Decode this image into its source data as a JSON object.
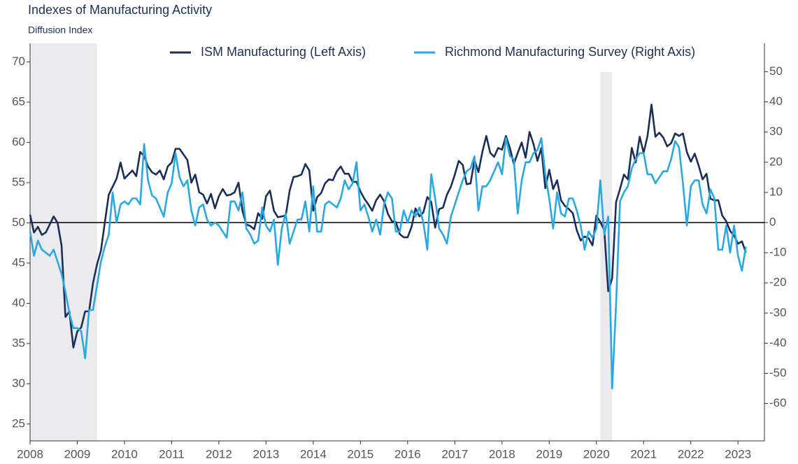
{
  "chart_data": {
    "type": "line",
    "title": "Indexes of Manufacturing Activity",
    "subtitle": "Diffusion Index",
    "x": [
      2008,
      2008.083,
      2008.167,
      2008.25,
      2008.333,
      2008.417,
      2008.5,
      2008.583,
      2008.667,
      2008.75,
      2008.833,
      2008.917,
      2009,
      2009.083,
      2009.167,
      2009.25,
      2009.333,
      2009.417,
      2009.5,
      2009.583,
      2009.667,
      2009.75,
      2009.833,
      2009.917,
      2010,
      2010.083,
      2010.167,
      2010.25,
      2010.333,
      2010.417,
      2010.5,
      2010.583,
      2010.667,
      2010.75,
      2010.833,
      2010.917,
      2011,
      2011.083,
      2011.167,
      2011.25,
      2011.333,
      2011.417,
      2011.5,
      2011.583,
      2011.667,
      2011.75,
      2011.833,
      2011.917,
      2012,
      2012.083,
      2012.167,
      2012.25,
      2012.333,
      2012.417,
      2012.5,
      2012.583,
      2012.667,
      2012.75,
      2012.833,
      2012.917,
      2013,
      2013.083,
      2013.167,
      2013.25,
      2013.333,
      2013.417,
      2013.5,
      2013.583,
      2013.667,
      2013.75,
      2013.833,
      2013.917,
      2014,
      2014.083,
      2014.167,
      2014.25,
      2014.333,
      2014.417,
      2014.5,
      2014.583,
      2014.667,
      2014.75,
      2014.833,
      2014.917,
      2015,
      2015.083,
      2015.167,
      2015.25,
      2015.333,
      2015.417,
      2015.5,
      2015.583,
      2015.667,
      2015.75,
      2015.833,
      2015.917,
      2016,
      2016.083,
      2016.167,
      2016.25,
      2016.333,
      2016.417,
      2016.5,
      2016.583,
      2016.667,
      2016.75,
      2016.833,
      2016.917,
      2017,
      2017.083,
      2017.167,
      2017.25,
      2017.333,
      2017.417,
      2017.5,
      2017.583,
      2017.667,
      2017.75,
      2017.833,
      2017.917,
      2018,
      2018.083,
      2018.167,
      2018.25,
      2018.333,
      2018.417,
      2018.5,
      2018.583,
      2018.667,
      2018.75,
      2018.833,
      2018.917,
      2019,
      2019.083,
      2019.167,
      2019.25,
      2019.333,
      2019.417,
      2019.5,
      2019.583,
      2019.667,
      2019.75,
      2019.833,
      2019.917,
      2020,
      2020.083,
      2020.167,
      2020.25,
      2020.333,
      2020.417,
      2020.5,
      2020.583,
      2020.667,
      2020.75,
      2020.833,
      2020.917,
      2021,
      2021.083,
      2021.167,
      2021.25,
      2021.333,
      2021.417,
      2021.5,
      2021.583,
      2021.667,
      2021.75,
      2021.833,
      2021.917,
      2022,
      2022.083,
      2022.167,
      2022.25,
      2022.333,
      2022.417,
      2022.5,
      2022.583,
      2022.667,
      2022.75,
      2022.833,
      2022.917,
      2023,
      2023.083,
      2023.167
    ],
    "series": [
      {
        "name": "ISM Manufacturing (Left Axis)",
        "color": "#1c2e57",
        "axis": "y",
        "values": [
          51,
          48.8,
          49.5,
          48.5,
          48.8,
          49.8,
          50.8,
          50,
          47.2,
          38.3,
          39,
          34.5,
          36.5,
          37,
          39,
          39,
          42.5,
          44.8,
          46.5,
          50,
          53.5,
          54.5,
          55.5,
          57.5,
          55.5,
          56,
          56.5,
          55.8,
          58.8,
          58.3,
          57,
          56.3,
          56,
          56.5,
          55.4,
          57,
          57.5,
          59.2,
          59.2,
          58.5,
          57.8,
          55,
          56,
          53.8,
          53.5,
          52.4,
          53.6,
          51.8,
          53.3,
          54.2,
          53.4,
          53.5,
          53.8,
          55,
          51.5,
          49.8,
          49.6,
          49.2,
          51.2,
          50.5,
          53.3,
          54,
          51.5,
          50.7,
          50.8,
          50.9,
          54,
          55.7,
          55.8,
          56,
          57.3,
          56.5,
          51.5,
          53.2,
          53.7,
          54.9,
          55.4,
          55.3,
          56.4,
          57,
          56.1,
          56.1,
          55.1,
          55.1,
          53.9,
          53,
          52.3,
          51.5,
          52.8,
          53.5,
          52.7,
          51.1,
          50.2,
          50.1,
          48.6,
          48.2,
          48.2,
          49.5,
          51.8,
          50.8,
          51.3,
          53.2,
          52.6,
          49.4,
          51.7,
          51.9,
          53.5,
          54.5,
          56,
          57.7,
          57.2,
          54.8,
          54.9,
          57.8,
          56.3,
          58.8,
          60.8,
          58.7,
          58.2,
          59.3,
          59.1,
          60.8,
          59.3,
          57.3,
          58.7,
          60,
          58.1,
          61.3,
          59.8,
          57.7,
          59.3,
          54.3,
          56.6,
          54.2,
          55.3,
          52.8,
          52.1,
          51.7,
          51.2,
          49.1,
          47.8,
          48.3,
          48.1,
          47.2,
          50.9,
          50.1,
          49.1,
          41.5,
          43.1,
          52.6,
          54.2,
          56,
          55.4,
          59.3,
          57.5,
          60.7,
          58.7,
          60.8,
          64.7,
          60.7,
          61.2,
          60.6,
          59.5,
          59.9,
          61.1,
          60.8,
          61.1,
          58.8,
          57.6,
          58.6,
          57.1,
          55.4,
          56.1,
          53,
          52.8,
          52.8,
          50.9,
          50.2,
          49,
          48.4,
          47.4,
          47.7,
          46.3
        ]
      },
      {
        "name": "Richmond Manufacturing Survey (Right Axis)",
        "color": "#29a9e0",
        "axis": "y2",
        "values": [
          -3,
          -11,
          -6,
          -9,
          -10,
          -11,
          -9,
          -13,
          -17,
          -23,
          -30,
          -35,
          -35,
          -36,
          -45,
          -29,
          -29,
          -21,
          -13,
          -8,
          -4,
          10,
          0,
          6,
          7,
          6,
          8,
          8,
          6,
          26,
          14,
          9,
          8,
          5,
          2,
          10,
          13,
          23,
          15,
          12,
          14,
          4,
          -1,
          5,
          6,
          1,
          -1,
          0,
          -1,
          -3,
          -5,
          7,
          7,
          4,
          10,
          -2,
          -4,
          -7,
          -6,
          5,
          -1,
          -3,
          1,
          -14,
          -2,
          3,
          -7,
          -3,
          1,
          1,
          7,
          -3,
          12,
          -3,
          -3,
          6,
          7,
          6,
          5,
          8,
          14,
          11,
          13,
          20,
          4,
          6,
          2,
          -3,
          1,
          -4,
          6,
          10,
          8,
          -3,
          -3,
          4,
          0,
          4,
          2,
          5,
          0,
          -9,
          16,
          8,
          -2,
          -4,
          -7,
          2,
          6,
          10,
          14,
          17,
          18,
          22,
          4,
          12,
          12,
          14,
          17,
          20,
          16,
          28,
          22,
          21,
          3,
          14,
          20,
          20,
          23,
          24,
          28,
          16,
          8,
          -2,
          10,
          3,
          2,
          8,
          8,
          4,
          -1,
          -9,
          -3,
          -5,
          -2,
          14,
          -4,
          2,
          -55,
          -27,
          7,
          10,
          12,
          18,
          21,
          23,
          23,
          16,
          16,
          13,
          15,
          17,
          17,
          21,
          27,
          25,
          13,
          -1,
          12,
          14,
          14,
          6,
          3,
          11,
          8,
          -9,
          -9,
          -1,
          -10,
          -1,
          -11,
          -16,
          -8
        ]
      }
    ],
    "xlim": [
      2008,
      2023.56
    ],
    "xticks": [
      2008,
      2009,
      2010,
      2011,
      2012,
      2013,
      2014,
      2015,
      2016,
      2017,
      2018,
      2019,
      2020,
      2021,
      2022,
      2023
    ],
    "ylim": [
      22.9,
      72.3
    ],
    "yticks": [
      25,
      30,
      35,
      40,
      45,
      50,
      55,
      60,
      65,
      70
    ],
    "y2lim": [
      -72.4,
      59.4
    ],
    "y2ticks": [
      -60,
      -50,
      -40,
      -30,
      -20,
      -10,
      0,
      10,
      20,
      30,
      40,
      50
    ],
    "reference_line": {
      "axis": "y2",
      "value": 0
    },
    "recessions": [
      [
        2008,
        2009.42
      ],
      [
        2020.08,
        2020.33
      ]
    ],
    "legend": "top-right"
  }
}
